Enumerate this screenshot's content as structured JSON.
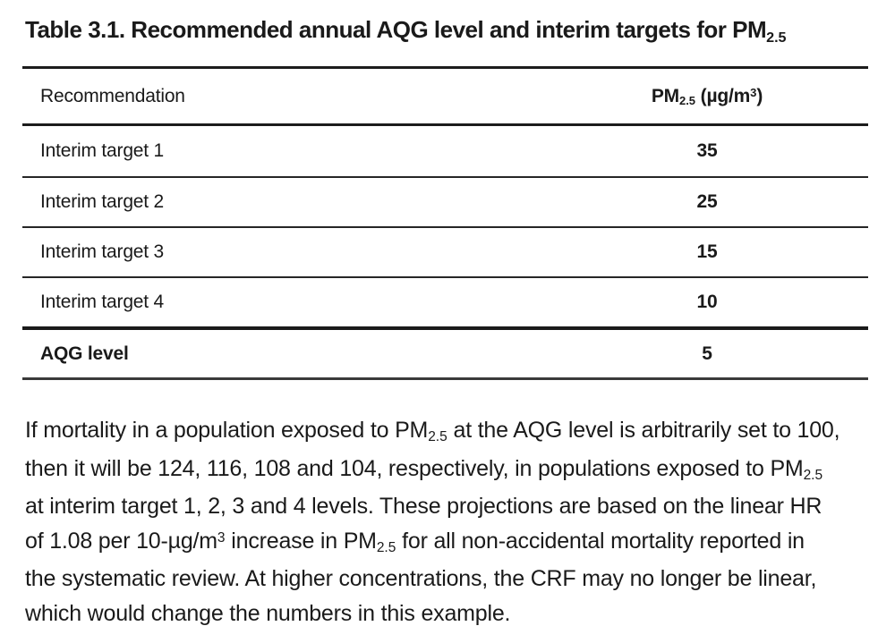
{
  "title": {
    "label": "Table 3.1.",
    "text": " Recommended annual AQG level and interim targets for PM",
    "sub": "2.5"
  },
  "table": {
    "header": {
      "col1": "Recommendation",
      "pm": "PM",
      "pm_sub": "2.5",
      "unit_pre": " (µg/m",
      "unit_sup": "3",
      "unit_post": ")"
    },
    "rows": [
      {
        "label": "Interim target 1",
        "value": "35"
      },
      {
        "label": "Interim target 2",
        "value": "25"
      },
      {
        "label": "Interim target 3",
        "value": "15"
      },
      {
        "label": "Interim target 4",
        "value": "10"
      },
      {
        "label": "AQG level",
        "value": "5"
      }
    ]
  },
  "paragraph": {
    "l1a": "If mortality in a population exposed to PM",
    "l1sub": "2.5",
    "l1b": " at the AQG level is arbitrarily set to 100,",
    "l2a": "then it will be 124, 116, 108 and 104, respectively, in populations exposed to PM",
    "l2sub": "2.5",
    "l3": "at interim target 1, 2, 3 and 4 levels. These projections are based on the linear HR",
    "l4a": "of 1.08 per 10-µg/m",
    "l4sup": "3",
    "l4b": " increase in PM",
    "l4sub": "2.5",
    "l4c": " for all non-accidental mortality reported in",
    "l5": "the systematic review. At higher concentrations, the CRF may no longer be linear,",
    "l6": "which would change the numbers in this example."
  },
  "colors": {
    "text": "#1a1a1a",
    "rule": "#1c1c1c",
    "background": "#ffffff"
  }
}
